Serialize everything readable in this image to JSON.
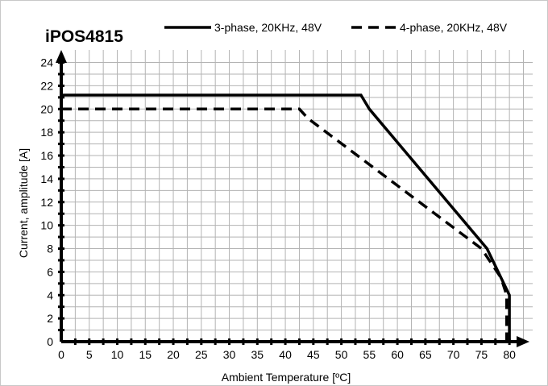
{
  "chart_data": {
    "type": "line",
    "title": "iPOS4815",
    "xlabel": "Ambient Temperature [ºC]",
    "ylabel": "Current, amplitude  [A]",
    "xlim": [
      0,
      83
    ],
    "ylim": [
      0,
      24.8
    ],
    "xticks": [
      0,
      5,
      10,
      15,
      20,
      25,
      30,
      35,
      40,
      45,
      50,
      55,
      60,
      65,
      70,
      75,
      80
    ],
    "yticks": [
      0,
      2,
      4,
      6,
      8,
      10,
      12,
      14,
      16,
      18,
      20,
      22,
      24
    ],
    "grid": true,
    "legend_position": "top",
    "series": [
      {
        "name": "3-phase, 20KHz, 48V",
        "style": "solid",
        "color": "#000000",
        "x": [
          0,
          53.5,
          55,
          76,
          80,
          80
        ],
        "y": [
          21.2,
          21.2,
          20,
          8,
          4,
          0
        ]
      },
      {
        "name": "4-phase, 20KHz, 48V",
        "style": "dashed",
        "color": "#000000",
        "x": [
          0,
          42.5,
          44,
          75,
          78.5,
          79.5,
          79.5
        ],
        "y": [
          20,
          20,
          19.2,
          8,
          5.5,
          4,
          0
        ]
      }
    ]
  }
}
